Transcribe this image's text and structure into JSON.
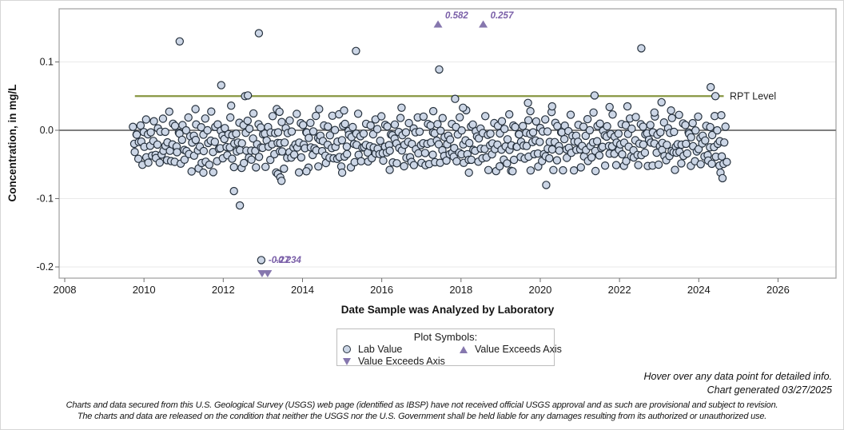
{
  "chart_data": {
    "type": "scatter",
    "title": "",
    "xlabel": "Date Sample was Analyzed by Laboratory",
    "ylabel": "Concentration, in mg/L",
    "x_ticks": [
      2008,
      2010,
      2012,
      2014,
      2016,
      2018,
      2020,
      2022,
      2024,
      2026
    ],
    "y_ticks": [
      {
        "value": 0.1,
        "label": "0.1"
      },
      {
        "value": 0.0,
        "label": "0.0"
      },
      {
        "value": -0.1,
        "label": "-0.1"
      },
      {
        "value": -0.2,
        "label": "-0.2"
      }
    ],
    "xlim": [
      2007.85,
      2027.45
    ],
    "ylim": [
      -0.216,
      0.178
    ],
    "grid": "horizontal-light",
    "zero_reference_line": 0.0,
    "rpt_line": {
      "value": 0.05,
      "x_start": 2009.77,
      "x_end": 2024.63,
      "label": "RPT Level",
      "color": "#879641"
    },
    "marker": {
      "shape": "circle",
      "fill": "#ccd6e6",
      "stroke": "#26313d",
      "radius": 4.6
    },
    "exceed_marker_color": "#8677ae",
    "annotation_text_color": "#7a5fa8",
    "lab_value_outliers": [
      [
        2010.9,
        0.13
      ],
      [
        2011.3,
        0.031
      ],
      [
        2011.5,
        -0.062
      ],
      [
        2011.95,
        0.066
      ],
      [
        2012.2,
        0.036
      ],
      [
        2012.27,
        -0.089
      ],
      [
        2012.42,
        -0.11
      ],
      [
        2012.55,
        0.05
      ],
      [
        2012.62,
        0.051
      ],
      [
        2012.9,
        0.142
      ],
      [
        2012.96,
        -0.19
      ],
      [
        2013.35,
        0.031
      ],
      [
        2013.42,
        0.027
      ],
      [
        2013.38,
        -0.064
      ],
      [
        2013.44,
        -0.069
      ],
      [
        2013.47,
        -0.074
      ],
      [
        2014.1,
        -0.06
      ],
      [
        2014.42,
        0.031
      ],
      [
        2015.0,
        -0.062
      ],
      [
        2015.05,
        0.029
      ],
      [
        2015.35,
        0.116
      ],
      [
        2016.2,
        -0.058
      ],
      [
        2016.5,
        0.033
      ],
      [
        2017.3,
        0.028
      ],
      [
        2017.45,
        0.089
      ],
      [
        2017.85,
        0.046
      ],
      [
        2018.05,
        0.033
      ],
      [
        2018.2,
        -0.062
      ],
      [
        2019.3,
        -0.06
      ],
      [
        2019.69,
        0.04
      ],
      [
        2019.75,
        0.028
      ],
      [
        2020.15,
        -0.08
      ],
      [
        2020.3,
        0.035
      ],
      [
        2021.37,
        0.051
      ],
      [
        2021.75,
        0.034
      ],
      [
        2022.2,
        0.035
      ],
      [
        2022.55,
        0.12
      ],
      [
        2022.88,
        0.026
      ],
      [
        2023.06,
        0.041
      ],
      [
        2023.3,
        0.029
      ],
      [
        2023.4,
        -0.058
      ],
      [
        2024.3,
        0.063
      ],
      [
        2024.42,
        0.05
      ],
      [
        2024.55,
        -0.062
      ],
      [
        2024.6,
        -0.07
      ]
    ],
    "lab_value_cloud": {
      "x_start": 2009.72,
      "x_end": 2024.7,
      "count": 560,
      "base_values": [
        0.005,
        -0.018,
        -0.032,
        0.002,
        -0.008,
        -0.044,
        -0.015,
        0.012,
        -0.025,
        -0.038,
        -0.005,
        -0.02,
        0.018,
        -0.03,
        -0.01,
        -0.048,
        -0.022,
        0,
        -0.035,
        -0.012,
        0.008,
        -0.028,
        -0.052,
        -0.016,
        0.003,
        -0.04,
        -0.007,
        -0.024,
        0.015,
        -0.033,
        -0.002,
        -0.019,
        -0.045,
        -0.011,
        0.022,
        -0.027,
        -0.055,
        -0.014,
        0.006,
        -0.036
      ],
      "amplitude_cycle": [
        1,
        0.82,
        1.12,
        0.93,
        1.06,
        0.88,
        1.15
      ],
      "offset_cycle": [
        0,
        -0.005,
        0.004,
        -0.008,
        0.002,
        -0.003
      ],
      "x_jitter_cycle": [
        0,
        0.008,
        -0.006,
        0.011,
        -0.009,
        0.004,
        -0.012,
        0.007,
        -0.003
      ]
    },
    "exceeds_axis_up": [
      {
        "year": 2017.42,
        "value_label": "0.582"
      },
      {
        "year": 2018.56,
        "value_label": "0.257"
      }
    ],
    "exceeds_axis_down": [
      {
        "year": 2012.98,
        "value_label": "-0.27"
      },
      {
        "year": 2013.12,
        "value_label": "-0.234"
      }
    ]
  },
  "legend": {
    "title": "Plot Symbols:",
    "items": [
      {
        "symbol": "circle",
        "label": "Lab Value"
      },
      {
        "symbol": "triangle-up",
        "label": "Value Exceeds Axis"
      },
      {
        "symbol": "triangle-down",
        "label": "Value Exceeds Axis"
      }
    ]
  },
  "notes": {
    "hover": "Hover over any data point for detailed info.",
    "generated": "Chart generated 03/27/2025"
  },
  "disclaimer": {
    "line1": "Charts and data secured from this U.S. Geological Survey (USGS) web page (identified as IBSP) have not received official USGS approval and as such are provisional and subject to revision.",
    "line2": "The charts and data are released on the condition that neither the USGS nor the U.S. Government shall be held liable for any damages resulting from its authorized or unauthorized use."
  }
}
